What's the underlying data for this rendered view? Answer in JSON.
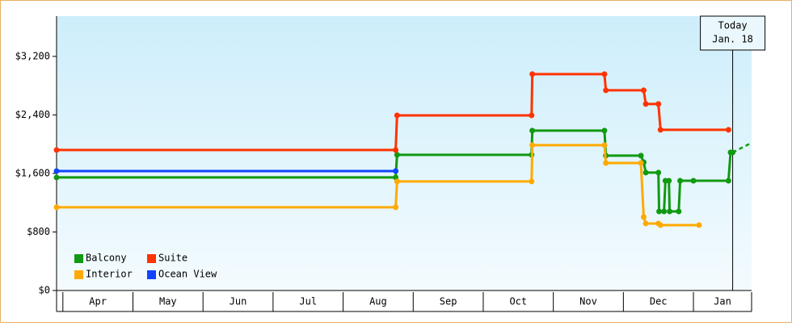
{
  "chart_data": {
    "type": "line",
    "ylim": [
      0,
      3750
    ],
    "yticks": [
      {
        "value": 0,
        "label": "$0"
      },
      {
        "value": 800,
        "label": "$800"
      },
      {
        "value": 1600,
        "label": "$1,600"
      },
      {
        "value": 2400,
        "label": "$2,400"
      },
      {
        "value": 3200,
        "label": "$3,200"
      }
    ],
    "xlim": [
      -0.09,
      9.83
    ],
    "xticks": [
      {
        "value": 0.5,
        "label": "Apr"
      },
      {
        "value": 1.5,
        "label": "May"
      },
      {
        "value": 2.5,
        "label": "Jun"
      },
      {
        "value": 3.5,
        "label": "Jul"
      },
      {
        "value": 4.5,
        "label": "Aug"
      },
      {
        "value": 5.5,
        "label": "Sep"
      },
      {
        "value": 6.5,
        "label": "Oct"
      },
      {
        "value": 7.5,
        "label": "Nov"
      },
      {
        "value": 8.5,
        "label": "Dec"
      },
      {
        "value": 9.5,
        "label": "Jan"
      }
    ],
    "legend": "bottom-left",
    "annotation": {
      "text": [
        "Today",
        "Jan. 18"
      ],
      "x": 9.56
    },
    "series": [
      {
        "name": "Balcony",
        "color": "#119911",
        "x": [
          -0.09,
          4.75,
          4.77,
          6.69,
          6.7,
          7.73,
          7.75,
          8.25,
          8.29,
          8.32,
          8.5,
          8.51,
          8.58,
          8.6,
          8.65,
          8.66,
          8.79,
          8.81,
          9.0,
          9.5,
          9.53,
          9.56
        ],
        "values": [
          1545,
          1545,
          1854,
          1854,
          2185,
          2185,
          1843,
          1843,
          1754,
          1611,
          1611,
          1081,
          1081,
          1500,
          1500,
          1081,
          1081,
          1500,
          1500,
          1500,
          1887,
          1887
        ],
        "projection": {
          "x": [
            9.56,
            9.83
          ],
          "values": [
            1887,
            2019
          ]
        }
      },
      {
        "name": "Suite",
        "color": "#ff3300",
        "x": [
          -0.09,
          4.75,
          4.77,
          6.69,
          6.7,
          7.73,
          7.75,
          8.29,
          8.32,
          8.5,
          8.53,
          9.5
        ],
        "values": [
          1920,
          1920,
          2394,
          2394,
          2957,
          2957,
          2736,
          2736,
          2549,
          2549,
          2196,
          2196
        ]
      },
      {
        "name": "Interior",
        "color": "#ffaa00",
        "x": [
          -0.09,
          4.75,
          4.77,
          6.69,
          6.7,
          7.73,
          7.75,
          8.25,
          8.29,
          8.32,
          8.5,
          8.53,
          9.08
        ],
        "values": [
          1137,
          1137,
          1490,
          1490,
          1986,
          1986,
          1743,
          1743,
          1004,
          916,
          916,
          894,
          894
        ]
      },
      {
        "name": "Ocean View",
        "color": "#1144ff",
        "x": [
          -0.09,
          4.75
        ],
        "values": [
          1633,
          1633
        ]
      }
    ]
  }
}
